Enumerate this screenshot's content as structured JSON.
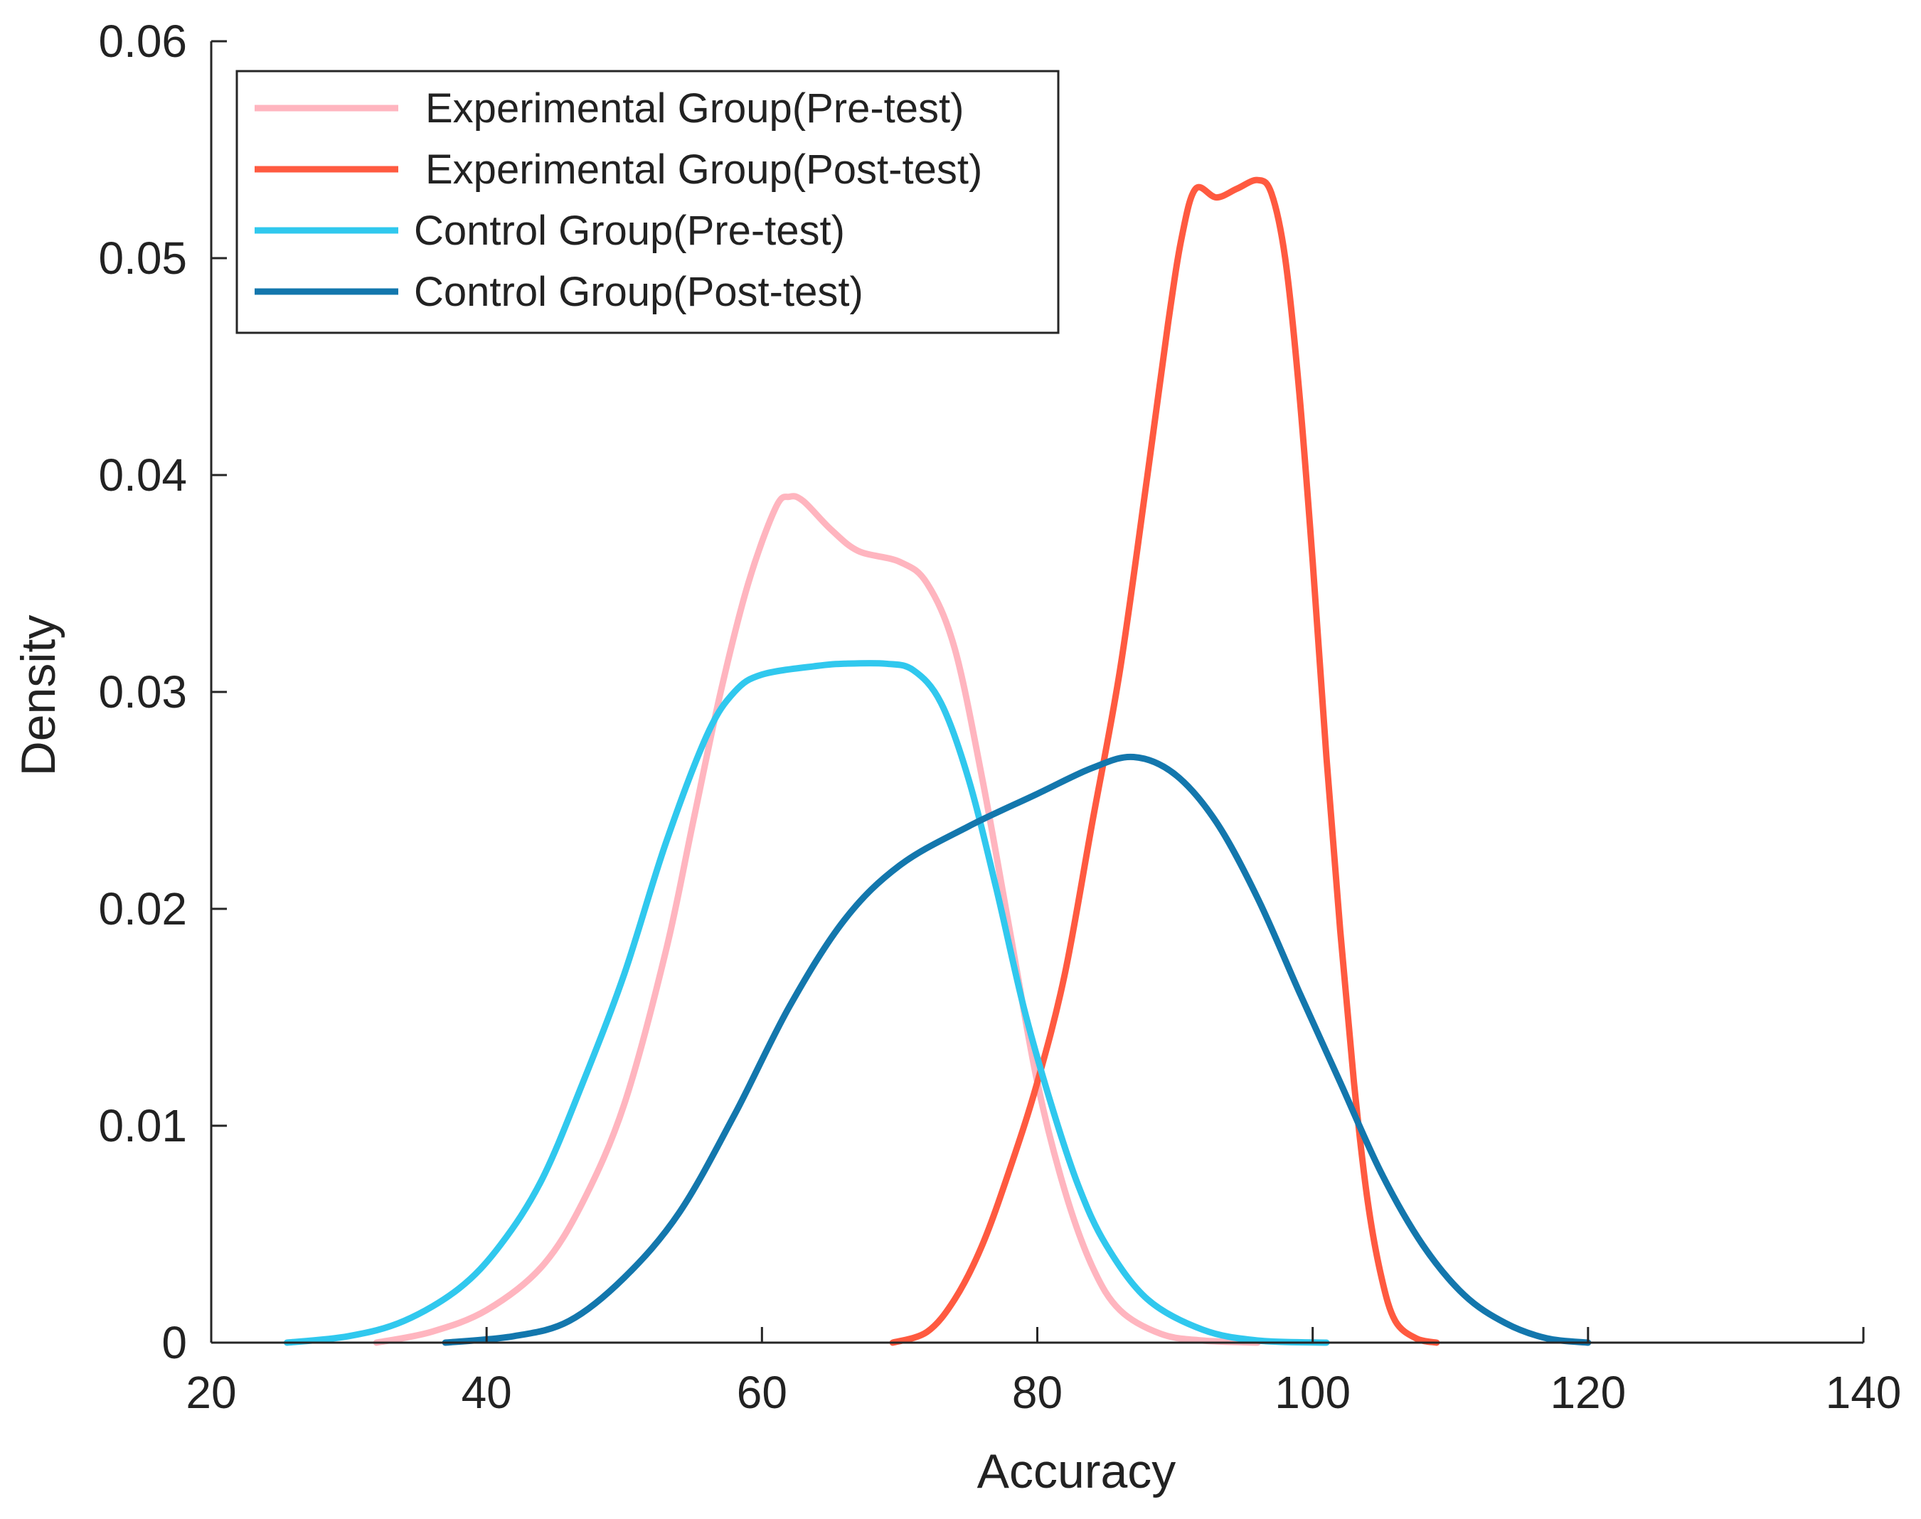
{
  "chart_data": {
    "type": "line",
    "title": "",
    "xlabel": "Accuracy",
    "ylabel": "Density",
    "xlim": [
      20,
      140
    ],
    "ylim": [
      0,
      0.06
    ],
    "xticks": [
      20,
      40,
      60,
      80,
      100,
      120,
      140
    ],
    "xtick_labels": [
      "20",
      "40",
      "60",
      "80",
      "100",
      "120",
      "140"
    ],
    "yticks": [
      0,
      0.01,
      0.02,
      0.03,
      0.04,
      0.05,
      0.06
    ],
    "ytick_labels": [
      "0",
      "0.01",
      "0.02",
      "0.03",
      "0.04",
      "0.05",
      "0.06"
    ],
    "grid": false,
    "legend_position": "top-left",
    "series": [
      {
        "name": "Experimental Group(Pre-test)",
        "color": "#ffb5bf",
        "points": [
          [
            32,
            0
          ],
          [
            36,
            0.0005
          ],
          [
            40,
            0.0015
          ],
          [
            44,
            0.0035
          ],
          [
            47,
            0.0065
          ],
          [
            50,
            0.011
          ],
          [
            53,
            0.018
          ],
          [
            55,
            0.024
          ],
          [
            57,
            0.03
          ],
          [
            59,
            0.035
          ],
          [
            61,
            0.0385
          ],
          [
            62,
            0.039
          ],
          [
            63,
            0.0388
          ],
          [
            65,
            0.0375
          ],
          [
            67,
            0.0365
          ],
          [
            70,
            0.036
          ],
          [
            72,
            0.035
          ],
          [
            74,
            0.032
          ],
          [
            76,
            0.026
          ],
          [
            78,
            0.019
          ],
          [
            80,
            0.012
          ],
          [
            82,
            0.007
          ],
          [
            84,
            0.0035
          ],
          [
            86,
            0.0015
          ],
          [
            89,
            0.0004
          ],
          [
            92,
            0.0001
          ],
          [
            96,
            0
          ]
        ]
      },
      {
        "name": "Experimental Group(Post-test)",
        "color": "#ff5a40",
        "points": [
          [
            69.5,
            0
          ],
          [
            72,
            0.0005
          ],
          [
            74,
            0.002
          ],
          [
            76,
            0.0045
          ],
          [
            78,
            0.008
          ],
          [
            80,
            0.012
          ],
          [
            82,
            0.017
          ],
          [
            84,
            0.024
          ],
          [
            86,
            0.031
          ],
          [
            88,
            0.04
          ],
          [
            89.5,
            0.047
          ],
          [
            90.5,
            0.051
          ],
          [
            91.5,
            0.0532
          ],
          [
            93,
            0.0528
          ],
          [
            94.5,
            0.0532
          ],
          [
            96,
            0.0536
          ],
          [
            97,
            0.053
          ],
          [
            98,
            0.05
          ],
          [
            99,
            0.044
          ],
          [
            100,
            0.036
          ],
          [
            101,
            0.027
          ],
          [
            102,
            0.019
          ],
          [
            103,
            0.012
          ],
          [
            104,
            0.0065
          ],
          [
            105,
            0.003
          ],
          [
            106,
            0.001
          ],
          [
            107.5,
            0.0002
          ],
          [
            109,
            0
          ]
        ]
      },
      {
        "name": "Control Group(Pre-test)",
        "color": "#30c8ee",
        "points": [
          [
            25.5,
            0
          ],
          [
            30,
            0.0003
          ],
          [
            34,
            0.001
          ],
          [
            38,
            0.0025
          ],
          [
            41,
            0.0045
          ],
          [
            44,
            0.0075
          ],
          [
            47,
            0.012
          ],
          [
            50,
            0.017
          ],
          [
            53,
            0.023
          ],
          [
            56,
            0.028
          ],
          [
            58,
            0.03
          ],
          [
            60,
            0.0308
          ],
          [
            64,
            0.0312
          ],
          [
            66,
            0.0313
          ],
          [
            69,
            0.0313
          ],
          [
            71,
            0.031
          ],
          [
            73,
            0.0295
          ],
          [
            75,
            0.026
          ],
          [
            77,
            0.021
          ],
          [
            79,
            0.0155
          ],
          [
            81,
            0.011
          ],
          [
            83,
            0.0072
          ],
          [
            85,
            0.0045
          ],
          [
            88,
            0.002
          ],
          [
            92,
            0.0006
          ],
          [
            96,
            0.0001
          ],
          [
            101,
            0
          ]
        ]
      },
      {
        "name": "Control Group(Post-test)",
        "color": "#1377ad",
        "points": [
          [
            37,
            0
          ],
          [
            42,
            0.0003
          ],
          [
            46,
            0.001
          ],
          [
            50,
            0.003
          ],
          [
            54,
            0.006
          ],
          [
            58,
            0.0105
          ],
          [
            62,
            0.0155
          ],
          [
            66,
            0.0195
          ],
          [
            70,
            0.022
          ],
          [
            75,
            0.0238
          ],
          [
            80,
            0.0253
          ],
          [
            84,
            0.0265
          ],
          [
            87,
            0.027
          ],
          [
            90,
            0.0262
          ],
          [
            93,
            0.024
          ],
          [
            96,
            0.0205
          ],
          [
            99,
            0.0162
          ],
          [
            102,
            0.012
          ],
          [
            105,
            0.0078
          ],
          [
            108,
            0.0045
          ],
          [
            111,
            0.0022
          ],
          [
            114,
            0.0009
          ],
          [
            117,
            0.0002
          ],
          [
            120,
            0
          ]
        ]
      }
    ]
  }
}
